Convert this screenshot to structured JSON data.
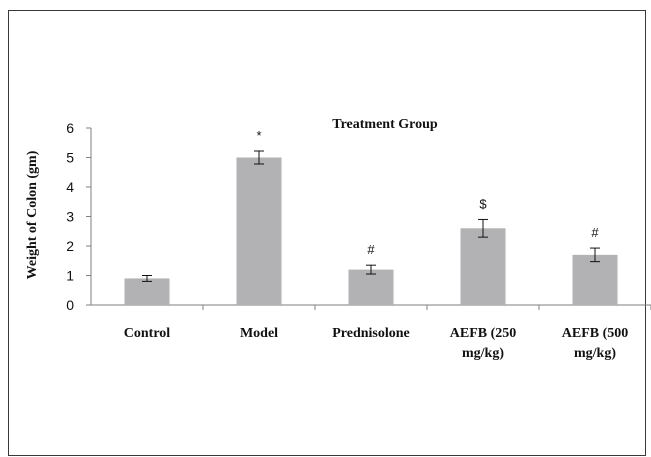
{
  "chart_data": {
    "type": "bar",
    "title": "Treatment Group",
    "xlabel": "",
    "ylabel": "Weight of Colon (gm)",
    "ylim": [
      0,
      6
    ],
    "yticks": [
      "0",
      "1",
      "2",
      "3",
      "4",
      "5",
      "6"
    ],
    "grid": false,
    "bar_color": "#b2b2b4",
    "categories": [
      [
        "Control"
      ],
      [
        "Model"
      ],
      [
        "Prednisolone"
      ],
      [
        "AEFB (250",
        "mg/kg)"
      ],
      [
        "AEFB (500",
        "mg/kg)"
      ]
    ],
    "values": [
      0.9,
      5.0,
      1.2,
      2.6,
      1.7
    ],
    "errors": [
      0.1,
      0.22,
      0.15,
      0.3,
      0.23
    ],
    "annotations": [
      "",
      "*",
      "#",
      "$",
      "#"
    ]
  }
}
